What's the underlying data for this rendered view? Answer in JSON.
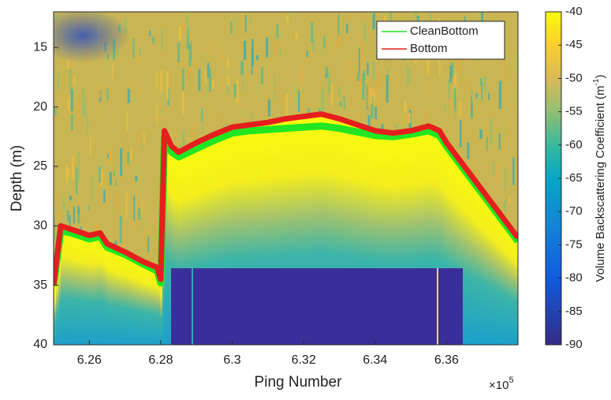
{
  "chart_data": {
    "type": "line",
    "xlabel": "Ping Number",
    "ylabel": "Depth (m)",
    "x_multiplier_base": "×10",
    "x_multiplier_exponent": "5",
    "xlim": [
      6.25,
      6.38
    ],
    "xticks": [
      6.26,
      6.28,
      6.3,
      6.32,
      6.34,
      6.36
    ],
    "ylim": [
      12,
      40
    ],
    "yticks": [
      15,
      20,
      25,
      30,
      35,
      40
    ],
    "y_reversed": true,
    "legend": "upper right",
    "x": [
      6.25,
      6.252,
      6.255,
      6.26,
      6.263,
      6.265,
      6.27,
      6.275,
      6.279,
      6.28,
      6.281,
      6.283,
      6.285,
      6.29,
      6.295,
      6.3,
      6.305,
      6.31,
      6.315,
      6.32,
      6.325,
      6.33,
      6.335,
      6.34,
      6.345,
      6.35,
      6.355,
      6.358,
      6.36,
      6.365,
      6.37,
      6.375,
      6.38
    ],
    "series": [
      {
        "name": "CleanBottom",
        "color": "#22e622",
        "values": [
          35,
          30.4,
          30.6,
          31.1,
          30.9,
          31.8,
          32.4,
          33.2,
          33.8,
          34.8,
          22.6,
          23.8,
          24.2,
          23.5,
          22.8,
          22.2,
          22,
          21.9,
          21.8,
          21.7,
          21.6,
          21.8,
          22.1,
          22.4,
          22.5,
          22.3,
          22,
          22.4,
          23.3,
          25.3,
          27.3,
          29.3,
          31.3
        ]
      },
      {
        "name": "Bottom",
        "color": "#e61e1e",
        "values": [
          35,
          30,
          30.3,
          30.8,
          30.6,
          31.5,
          32.2,
          33,
          33.5,
          34.5,
          22,
          23.3,
          23.8,
          23,
          22.3,
          21.7,
          21.5,
          21.3,
          21,
          20.8,
          20.6,
          21,
          21.5,
          22,
          22.2,
          22,
          21.6,
          22,
          23,
          25,
          27,
          29,
          31
        ]
      }
    ],
    "colorbar": {
      "label": "Volume Backscattering Coefficient (m",
      "label_exponent": "-1",
      "label_end": ")",
      "lim": [
        -90,
        -40
      ],
      "ticks": [
        -40,
        -45,
        -50,
        -55,
        -60,
        -65,
        -70,
        -75,
        -80,
        -85,
        -90
      ]
    }
  }
}
